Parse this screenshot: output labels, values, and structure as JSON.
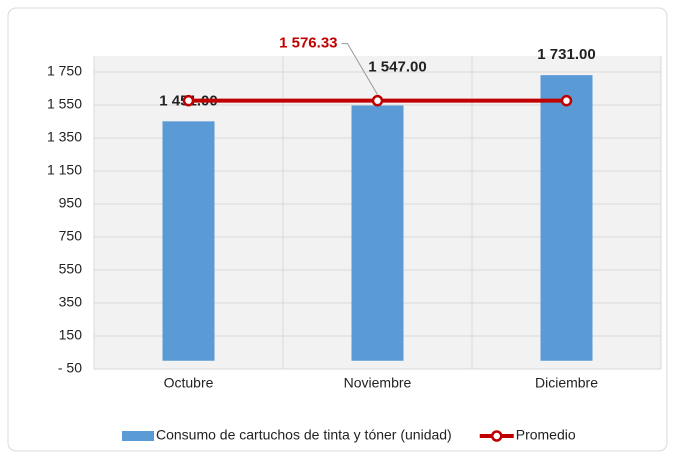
{
  "chart_data": {
    "type": "bar",
    "categories": [
      "Octubre",
      "Noviembre",
      "Diciembre"
    ],
    "series": [
      {
        "name": "Consumo de cartuchos de tinta y tóner (unidad)",
        "type": "bar",
        "color": "#5b9bd5",
        "values": [
          1451,
          1547,
          1731
        ],
        "value_labels": [
          "1 451.00",
          "1 547.00",
          "1 731.00"
        ]
      },
      {
        "name": "Promedio",
        "type": "line",
        "color": "#c00000",
        "values": [
          1576.33,
          1576.33,
          1576.33
        ],
        "value_labels": [
          null,
          "1 576.33",
          null
        ]
      }
    ],
    "ylim": [
      -50,
      1750
    ],
    "yticks": [
      {
        "value": -50,
        "label": "- 50"
      },
      150,
      350,
      550,
      750,
      950,
      {
        "value": 1150,
        "label": "1 150"
      },
      {
        "value": 1350,
        "label": "1 350"
      },
      {
        "value": 1550,
        "label": "1 550"
      },
      {
        "value": 1750,
        "label": "1 750"
      }
    ],
    "grid": true,
    "legend": "bottom"
  }
}
